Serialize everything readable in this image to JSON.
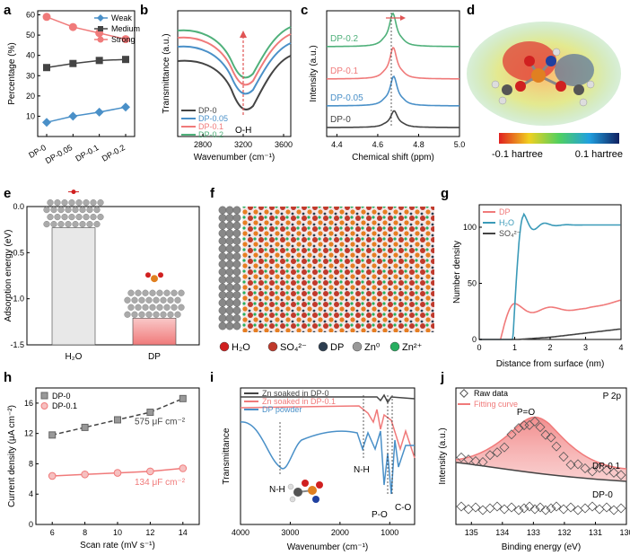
{
  "colors": {
    "blue": "#4a90c8",
    "gray": "#555555",
    "pink": "#f07a7a",
    "green": "#4fb07a",
    "dark": "#444444",
    "red": "#e05555",
    "teal": "#3a9ab8",
    "sulfate": "#555555"
  },
  "panels": {
    "a": "a",
    "b": "b",
    "c": "c",
    "d": "d",
    "e": "e",
    "f": "f",
    "g": "g",
    "h": "h",
    "i": "i",
    "j": "j"
  },
  "chart_data": [
    {
      "id": "a",
      "type": "line",
      "categories": [
        "DP-0",
        "DP-0.05",
        "DP-0.1",
        "DP-0.2"
      ],
      "series": [
        {
          "name": "Weak",
          "values": [
            7,
            10,
            12,
            14.5
          ]
        },
        {
          "name": "Medium",
          "values": [
            34,
            36,
            37.5,
            38
          ]
        },
        {
          "name": "Strong",
          "values": [
            59,
            54,
            51,
            48
          ]
        }
      ],
      "ylabel": "Percentage (%)",
      "ylim": [
        0,
        60
      ],
      "yticks": [
        10,
        20,
        30,
        40,
        50,
        60
      ]
    },
    {
      "id": "b",
      "type": "line",
      "title": "",
      "xlabel": "Wavenumber (cm⁻¹)",
      "ylabel": "Transmittance (a.u.)",
      "xticks": [
        "2800",
        "3200",
        "3600"
      ],
      "legend": [
        "DP-0",
        "DP-0.05",
        "DP-0.1",
        "DP-0.2"
      ],
      "annotation": "O-H"
    },
    {
      "id": "c",
      "type": "line",
      "xlabel": "Chemical shift (ppm)",
      "ylabel": "Intensity (a.u.)",
      "xticks": [
        "4.4",
        "4.6",
        "4.8",
        "5.0"
      ],
      "labels": [
        "DP-0.2",
        "DP-0.1",
        "DP-0.05",
        "DP-0"
      ]
    },
    {
      "id": "e",
      "type": "bar",
      "categories": [
        "H₂O",
        "DP"
      ],
      "values": [
        -0.23,
        -1.21
      ],
      "ylabel": "Adsorption energy (eV)",
      "ylim": [
        -1.5,
        0
      ],
      "yticks": [
        "0.0",
        "-0.5",
        "-1.0",
        "-1.5"
      ]
    },
    {
      "id": "g",
      "type": "line",
      "xlabel": "Distance from surface (nm)",
      "ylabel": "Number density",
      "xticks": [
        "0",
        "1",
        "2",
        "3",
        "4"
      ],
      "yticks": [
        "0",
        "50",
        "100"
      ],
      "legend": [
        "DP",
        "H₂O",
        "SO₄²⁻"
      ]
    },
    {
      "id": "h",
      "type": "scatter",
      "xlabel": "Scan rate (mV s⁻¹)",
      "ylabel": "Current density (μA cm⁻²)",
      "x": [
        6,
        8,
        10,
        12,
        14
      ],
      "xticks": [
        "6",
        "8",
        "10",
        "12",
        "14"
      ],
      "yticks": [
        "0",
        "4",
        "8",
        "12",
        "16"
      ],
      "ylim": [
        0,
        18
      ],
      "xlim": [
        5,
        15
      ],
      "series": [
        {
          "name": "DP-0",
          "values": [
            11.8,
            12.8,
            13.8,
            14.8,
            16.6
          ],
          "annotation": "575 μF cm⁻²"
        },
        {
          "name": "DP-0.1",
          "values": [
            6.4,
            6.6,
            6.8,
            7.0,
            7.4
          ],
          "annotation": "134 μF cm⁻²"
        }
      ]
    },
    {
      "id": "i",
      "type": "line",
      "xlabel": "Wavenumber (cm⁻¹)",
      "ylabel": "Transmittance",
      "xticks": [
        "4000",
        "3000",
        "2000",
        "1000"
      ],
      "legend": [
        "Zn soaked in DP-0",
        "Zn soaked in DP-0.1",
        "DP powder"
      ],
      "annotations": [
        "N-H",
        "N-H",
        "P-O",
        "C-O"
      ]
    },
    {
      "id": "j",
      "type": "line",
      "title": "P 2p",
      "xlabel": "Binding energy (eV)",
      "ylabel": "Intensity (a.u.)",
      "xticks": [
        "135",
        "134",
        "133",
        "132",
        "131",
        "130"
      ],
      "legend": [
        "Raw data",
        "Fitting curve"
      ],
      "annotations": [
        "P=O",
        "DP-0.1",
        "DP-0"
      ]
    }
  ],
  "panel_d": {
    "scale_min": "-0.1 hartree",
    "scale_max": "0.1 hartree"
  },
  "panel_f": {
    "legend": [
      "H₂O",
      "SO₄²⁻",
      "DP",
      "Zn⁰",
      "Zn²⁺"
    ]
  }
}
